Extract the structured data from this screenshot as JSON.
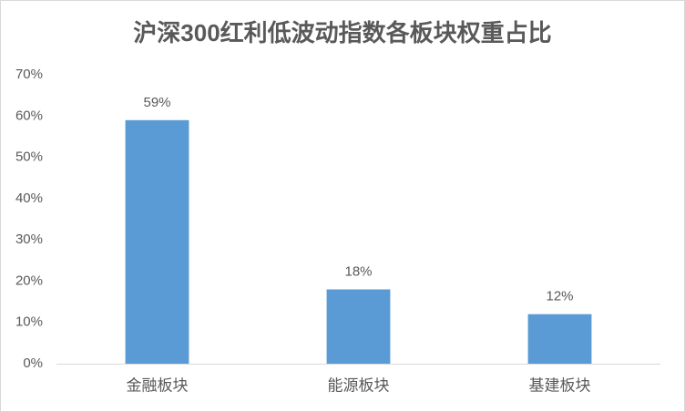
{
  "chart_data": {
    "type": "bar",
    "title": "沪深300红利低波动指数各板块权重占比",
    "categories": [
      "金融板块",
      "能源板块",
      "基建板块"
    ],
    "values": [
      59,
      18,
      12
    ],
    "value_labels": [
      "59%",
      "18%",
      "12%"
    ],
    "color": "#5b9bd5",
    "ylim": [
      0,
      70
    ],
    "yticks": [
      {
        "value": 0,
        "label": "0%"
      },
      {
        "value": 10,
        "label": "10%"
      },
      {
        "value": 20,
        "label": "20%"
      },
      {
        "value": 30,
        "label": "30%"
      },
      {
        "value": 40,
        "label": "40%"
      },
      {
        "value": 50,
        "label": "50%"
      },
      {
        "value": 60,
        "label": "60%"
      },
      {
        "value": 70,
        "label": "70%"
      }
    ],
    "grid": false
  }
}
